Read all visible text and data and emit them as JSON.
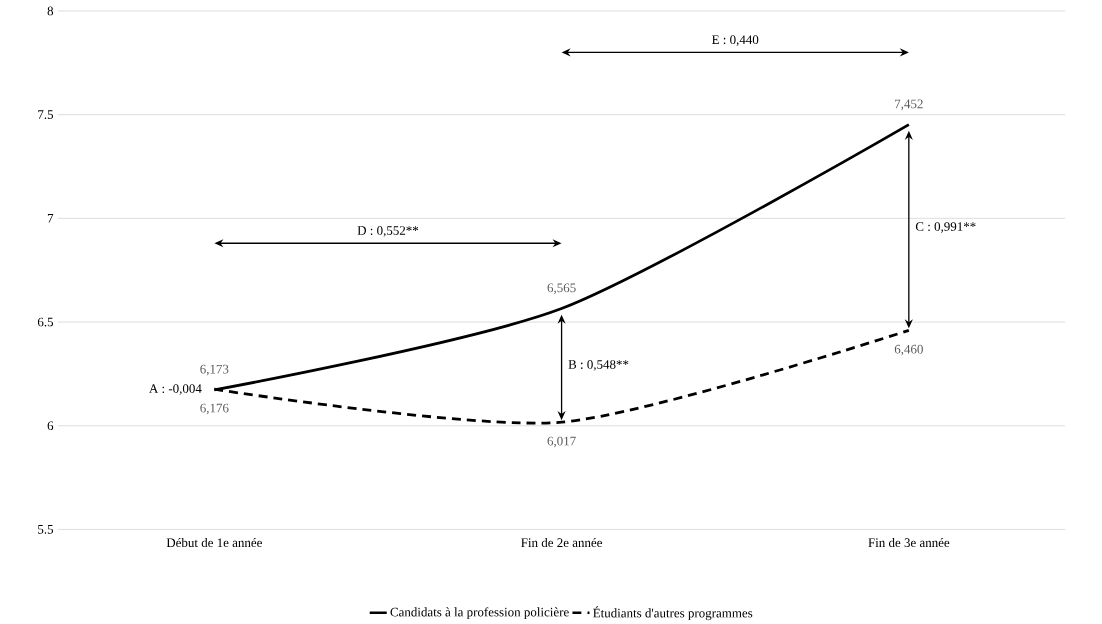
{
  "chart_data": {
    "type": "line",
    "categories": [
      "Début de 1e année",
      "Fin de 2e année",
      "Fin de 3e année"
    ],
    "ylim": [
      5.5,
      8
    ],
    "yticks": [
      5.5,
      6,
      6.5,
      7,
      7.5,
      8
    ],
    "grid": "y",
    "legend": "bottom",
    "marker": "none",
    "series": [
      {
        "name": "Candidats à la profession policière",
        "color": "#000000",
        "line_style": "solid",
        "values": [
          6.173,
          6.565,
          7.452
        ],
        "value_labels": [
          "6,173",
          "6,565",
          "7,452"
        ]
      },
      {
        "name": "Étudiants d'autres programmes",
        "color": "#000000",
        "line_style": "dashed",
        "values": [
          6.176,
          6.017,
          6.46
        ],
        "value_labels": [
          "6,176",
          "6,017",
          "6,460"
        ]
      }
    ],
    "annotations": [
      "A : -0,004",
      "B : 0,548**",
      "C : 0,991**",
      "D : 0,552**",
      "E : 0,440"
    ]
  }
}
